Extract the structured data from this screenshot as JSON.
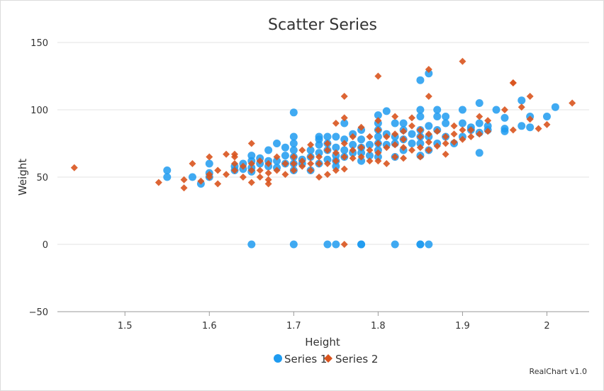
{
  "chart_data": {
    "type": "scatter",
    "title": "Scatter Series",
    "xlabel": "Height",
    "ylabel": "Weight",
    "xlim": [
      1.42,
      2.05
    ],
    "ylim": [
      -50,
      150
    ],
    "xticks": [
      1.5,
      1.6,
      1.7,
      1.8,
      1.9,
      2
    ],
    "yticks": [
      -50,
      0,
      50,
      100,
      150
    ],
    "xtick_labels": [
      "1.5",
      "1.6",
      "1.7",
      "1.8",
      "1.9",
      "2"
    ],
    "ytick_labels": [
      "−50",
      "0",
      "50",
      "100",
      "150"
    ],
    "grid": "horizontal",
    "legend_position": "bottom",
    "credits": "RealChart v1.0",
    "series": [
      {
        "name": "Series 1",
        "marker": "circle",
        "color": "#1e9bf0",
        "points": [
          [
            1.55,
            55
          ],
          [
            1.55,
            50
          ],
          [
            1.58,
            50
          ],
          [
            1.59,
            45
          ],
          [
            1.6,
            60
          ],
          [
            1.6,
            50
          ],
          [
            1.6,
            53
          ],
          [
            1.63,
            55
          ],
          [
            1.63,
            58
          ],
          [
            1.64,
            60
          ],
          [
            1.64,
            56
          ],
          [
            1.65,
            62
          ],
          [
            1.65,
            57
          ],
          [
            1.65,
            54
          ],
          [
            1.65,
            66
          ],
          [
            1.66,
            60
          ],
          [
            1.66,
            64
          ],
          [
            1.67,
            58
          ],
          [
            1.67,
            62
          ],
          [
            1.67,
            70
          ],
          [
            1.68,
            62
          ],
          [
            1.68,
            75
          ],
          [
            1.68,
            57
          ],
          [
            1.69,
            60
          ],
          [
            1.69,
            66
          ],
          [
            1.69,
            72
          ],
          [
            1.7,
            60
          ],
          [
            1.7,
            65
          ],
          [
            1.7,
            70
          ],
          [
            1.7,
            75
          ],
          [
            1.7,
            80
          ],
          [
            1.7,
            98
          ],
          [
            1.7,
            55
          ],
          [
            1.71,
            60
          ],
          [
            1.71,
            63
          ],
          [
            1.72,
            65
          ],
          [
            1.72,
            55
          ],
          [
            1.72,
            70
          ],
          [
            1.73,
            60
          ],
          [
            1.73,
            68
          ],
          [
            1.73,
            78
          ],
          [
            1.73,
            80
          ],
          [
            1.73,
            74
          ],
          [
            1.74,
            63
          ],
          [
            1.74,
            70
          ],
          [
            1.74,
            75
          ],
          [
            1.74,
            80
          ],
          [
            1.75,
            62
          ],
          [
            1.75,
            66
          ],
          [
            1.75,
            72
          ],
          [
            1.75,
            80
          ],
          [
            1.75,
            58
          ],
          [
            1.76,
            65
          ],
          [
            1.76,
            70
          ],
          [
            1.76,
            78
          ],
          [
            1.76,
            90
          ],
          [
            1.77,
            74
          ],
          [
            1.77,
            68
          ],
          [
            1.77,
            82
          ],
          [
            1.78,
            62
          ],
          [
            1.78,
            68
          ],
          [
            1.78,
            72
          ],
          [
            1.78,
            78
          ],
          [
            1.78,
            85
          ],
          [
            1.79,
            66
          ],
          [
            1.79,
            74
          ],
          [
            1.8,
            65
          ],
          [
            1.8,
            70
          ],
          [
            1.8,
            75
          ],
          [
            1.8,
            80
          ],
          [
            1.8,
            85
          ],
          [
            1.8,
            90
          ],
          [
            1.8,
            96
          ],
          [
            1.81,
            74
          ],
          [
            1.81,
            82
          ],
          [
            1.81,
            99
          ],
          [
            1.82,
            65
          ],
          [
            1.82,
            75
          ],
          [
            1.82,
            80
          ],
          [
            1.82,
            90
          ],
          [
            1.83,
            70
          ],
          [
            1.83,
            78
          ],
          [
            1.83,
            85
          ],
          [
            1.83,
            90
          ],
          [
            1.84,
            75
          ],
          [
            1.84,
            82
          ],
          [
            1.85,
            66
          ],
          [
            1.85,
            75
          ],
          [
            1.85,
            80
          ],
          [
            1.85,
            85
          ],
          [
            1.85,
            95
          ],
          [
            1.85,
            100
          ],
          [
            1.85,
            122
          ],
          [
            1.86,
            70
          ],
          [
            1.86,
            80
          ],
          [
            1.86,
            88
          ],
          [
            1.86,
            127
          ],
          [
            1.87,
            75
          ],
          [
            1.87,
            85
          ],
          [
            1.87,
            95
          ],
          [
            1.87,
            100
          ],
          [
            1.88,
            80
          ],
          [
            1.88,
            90
          ],
          [
            1.88,
            95
          ],
          [
            1.89,
            75
          ],
          [
            1.9,
            80
          ],
          [
            1.9,
            90
          ],
          [
            1.9,
            100
          ],
          [
            1.91,
            85
          ],
          [
            1.91,
            87
          ],
          [
            1.92,
            68
          ],
          [
            1.92,
            83
          ],
          [
            1.92,
            90
          ],
          [
            1.92,
            105
          ],
          [
            1.93,
            85
          ],
          [
            1.93,
            88
          ],
          [
            1.94,
            100
          ],
          [
            1.95,
            84
          ],
          [
            1.95,
            86
          ],
          [
            1.95,
            94
          ],
          [
            1.97,
            88
          ],
          [
            1.97,
            107
          ],
          [
            1.98,
            87
          ],
          [
            1.98,
            95
          ],
          [
            2.0,
            95
          ],
          [
            2.01,
            102
          ],
          [
            1.65,
            0
          ],
          [
            1.7,
            0
          ],
          [
            1.74,
            0
          ],
          [
            1.75,
            0
          ],
          [
            1.78,
            0
          ],
          [
            1.78,
            0
          ],
          [
            1.82,
            0
          ],
          [
            1.85,
            0
          ],
          [
            1.85,
            0
          ],
          [
            1.86,
            0
          ]
        ]
      },
      {
        "name": "Series 2",
        "marker": "diamond",
        "color": "#d9541e",
        "points": [
          [
            1.44,
            57
          ],
          [
            1.54,
            46
          ],
          [
            1.57,
            42
          ],
          [
            1.57,
            48
          ],
          [
            1.58,
            60
          ],
          [
            1.59,
            47
          ],
          [
            1.6,
            50
          ],
          [
            1.6,
            52
          ],
          [
            1.6,
            65
          ],
          [
            1.61,
            45
          ],
          [
            1.61,
            55
          ],
          [
            1.62,
            52
          ],
          [
            1.62,
            67
          ],
          [
            1.63,
            55
          ],
          [
            1.63,
            60
          ],
          [
            1.63,
            65
          ],
          [
            1.63,
            67
          ],
          [
            1.64,
            50
          ],
          [
            1.64,
            58
          ],
          [
            1.65,
            46
          ],
          [
            1.65,
            55
          ],
          [
            1.65,
            60
          ],
          [
            1.65,
            75
          ],
          [
            1.66,
            50
          ],
          [
            1.66,
            55
          ],
          [
            1.66,
            62
          ],
          [
            1.67,
            45
          ],
          [
            1.67,
            48
          ],
          [
            1.67,
            53
          ],
          [
            1.67,
            60
          ],
          [
            1.68,
            55
          ],
          [
            1.68,
            65
          ],
          [
            1.69,
            52
          ],
          [
            1.69,
            60
          ],
          [
            1.7,
            55
          ],
          [
            1.7,
            60
          ],
          [
            1.7,
            65
          ],
          [
            1.71,
            58
          ],
          [
            1.71,
            62
          ],
          [
            1.71,
            70
          ],
          [
            1.72,
            55
          ],
          [
            1.72,
            60
          ],
          [
            1.72,
            65
          ],
          [
            1.72,
            74
          ],
          [
            1.73,
            50
          ],
          [
            1.73,
            60
          ],
          [
            1.73,
            65
          ],
          [
            1.74,
            52
          ],
          [
            1.74,
            60
          ],
          [
            1.74,
            70
          ],
          [
            1.74,
            75
          ],
          [
            1.75,
            55
          ],
          [
            1.75,
            62
          ],
          [
            1.75,
            68
          ],
          [
            1.75,
            90
          ],
          [
            1.76,
            56
          ],
          [
            1.76,
            65
          ],
          [
            1.76,
            75
          ],
          [
            1.76,
            94
          ],
          [
            1.76,
            110
          ],
          [
            1.77,
            64
          ],
          [
            1.77,
            70
          ],
          [
            1.77,
            80
          ],
          [
            1.78,
            65
          ],
          [
            1.78,
            72
          ],
          [
            1.78,
            87
          ],
          [
            1.79,
            62
          ],
          [
            1.79,
            70
          ],
          [
            1.79,
            80
          ],
          [
            1.8,
            62
          ],
          [
            1.8,
            68
          ],
          [
            1.8,
            75
          ],
          [
            1.8,
            85
          ],
          [
            1.8,
            92
          ],
          [
            1.8,
            125
          ],
          [
            1.81,
            60
          ],
          [
            1.81,
            72
          ],
          [
            1.81,
            80
          ],
          [
            1.82,
            65
          ],
          [
            1.82,
            74
          ],
          [
            1.82,
            82
          ],
          [
            1.82,
            95
          ],
          [
            1.83,
            64
          ],
          [
            1.83,
            72
          ],
          [
            1.83,
            78
          ],
          [
            1.83,
            84
          ],
          [
            1.84,
            70
          ],
          [
            1.84,
            88
          ],
          [
            1.84,
            94
          ],
          [
            1.85,
            65
          ],
          [
            1.85,
            72
          ],
          [
            1.85,
            80
          ],
          [
            1.85,
            85
          ],
          [
            1.86,
            70
          ],
          [
            1.86,
            76
          ],
          [
            1.86,
            82
          ],
          [
            1.86,
            110
          ],
          [
            1.86,
            130
          ],
          [
            1.87,
            73
          ],
          [
            1.87,
            84
          ],
          [
            1.88,
            67
          ],
          [
            1.88,
            75
          ],
          [
            1.88,
            80
          ],
          [
            1.89,
            76
          ],
          [
            1.89,
            82
          ],
          [
            1.89,
            88
          ],
          [
            1.9,
            78
          ],
          [
            1.9,
            85
          ],
          [
            1.9,
            136
          ],
          [
            1.91,
            80
          ],
          [
            1.91,
            85
          ],
          [
            1.92,
            82
          ],
          [
            1.92,
            95
          ],
          [
            1.93,
            84
          ],
          [
            1.93,
            92
          ],
          [
            1.95,
            100
          ],
          [
            1.96,
            85
          ],
          [
            1.96,
            120
          ],
          [
            1.96,
            120
          ],
          [
            1.97,
            102
          ],
          [
            1.98,
            93
          ],
          [
            1.98,
            110
          ],
          [
            1.99,
            86
          ],
          [
            2.0,
            89
          ],
          [
            2.03,
            105
          ],
          [
            1.76,
            0
          ]
        ]
      }
    ]
  }
}
